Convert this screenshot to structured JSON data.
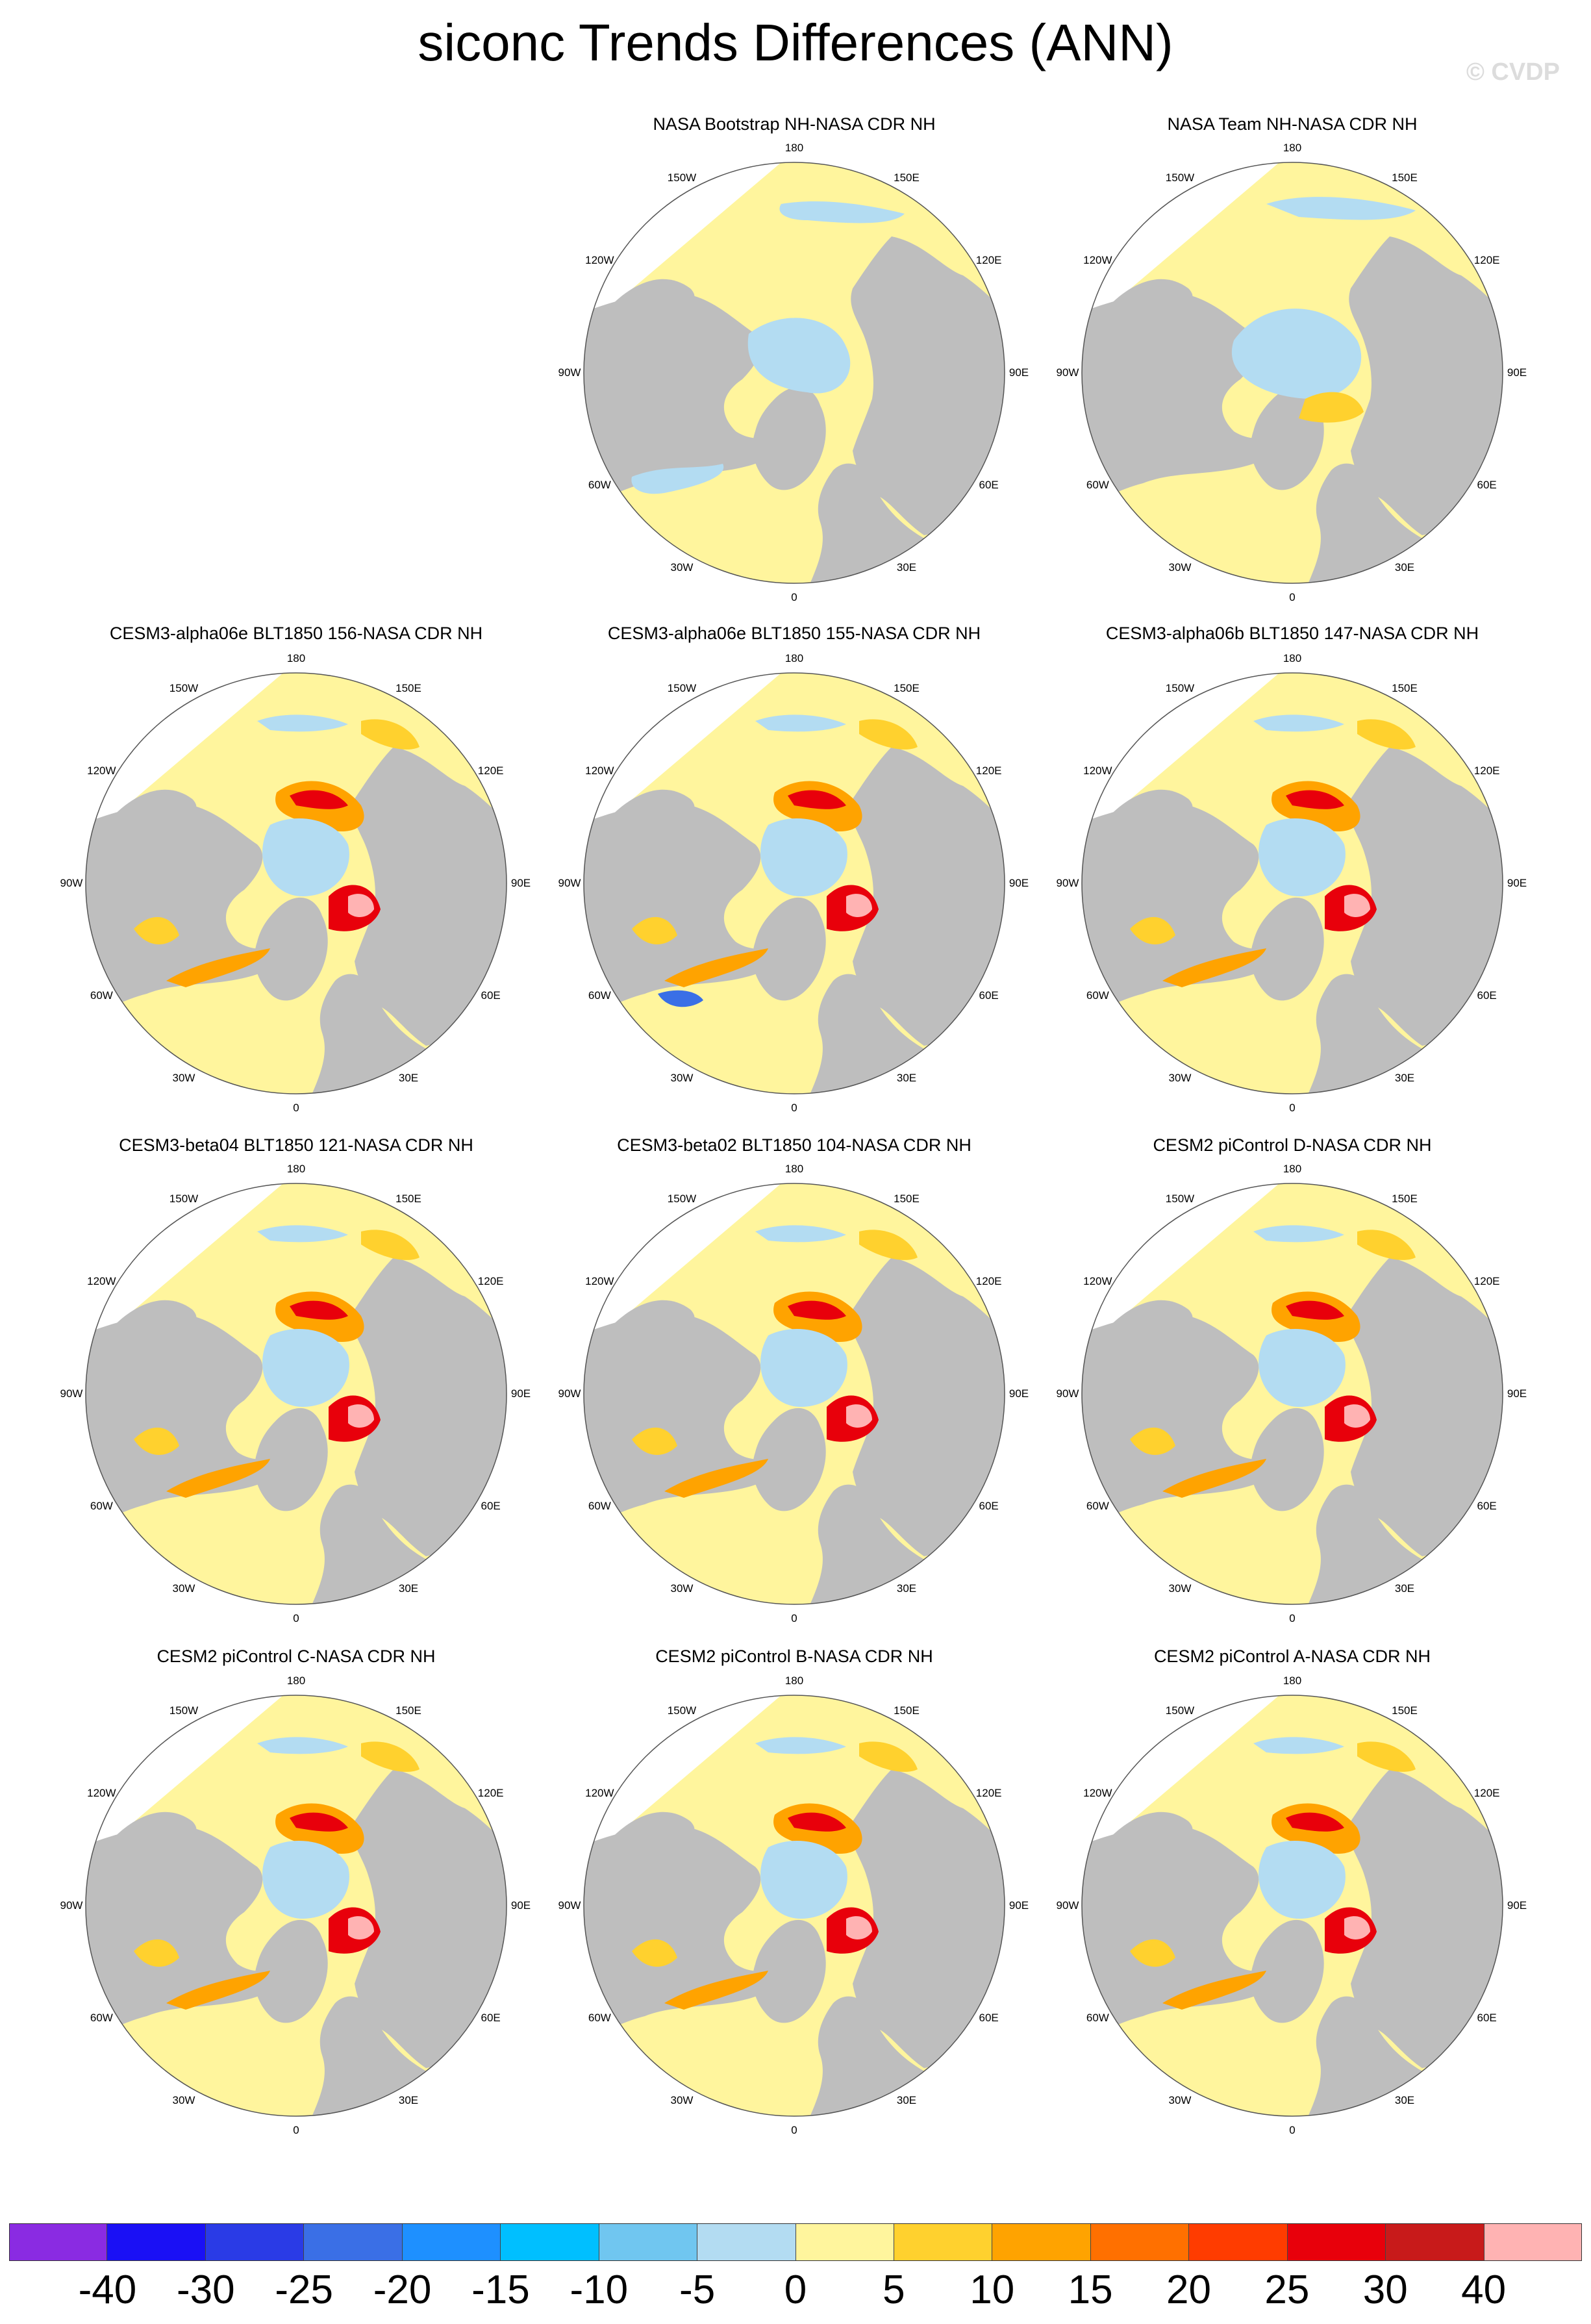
{
  "title": "siconc Trends Differences (ANN)",
  "watermark": "© CVDP",
  "colors": {
    "land": "#bebebe",
    "ocean_mask": "#ffffff",
    "zero": "#fff59d",
    "light_blue": "#b3dcf2",
    "yellow_orange": "#ffd12e",
    "orange": "#ffa300",
    "red": "#e8000b",
    "dark_red": "#c81010",
    "pink": "#ffb3b3"
  },
  "lon_labels": [
    {
      "text": "180",
      "pos": "top"
    },
    {
      "text": "150E",
      "pos": "top-right"
    },
    {
      "text": "120E",
      "pos": "right-upper"
    },
    {
      "text": "90E",
      "pos": "right"
    },
    {
      "text": "60E",
      "pos": "right-lower"
    },
    {
      "text": "30E",
      "pos": "bottom-right"
    },
    {
      "text": "0",
      "pos": "bottom"
    },
    {
      "text": "30W",
      "pos": "bottom-left"
    },
    {
      "text": "60W",
      "pos": "left-lower"
    },
    {
      "text": "90W",
      "pos": "left"
    },
    {
      "text": "120W",
      "pos": "left-upper"
    },
    {
      "text": "150W",
      "pos": "top-left"
    }
  ],
  "panels": [
    {
      "title": "NASA Bootstrap NH-NASA CDR NH",
      "variant": "obs1"
    },
    {
      "title": "NASA Team NH-NASA CDR NH",
      "variant": "obs2"
    },
    {
      "title": "CESM3-alpha06e BLT1850 156-NASA CDR NH",
      "variant": "model_a"
    },
    {
      "title": "CESM3-alpha06e BLT1850 155-NASA CDR NH",
      "variant": "model_b"
    },
    {
      "title": "CESM3-alpha06b BLT1850 147-NASA CDR NH",
      "variant": "model_c"
    },
    {
      "title": "CESM3-beta04 BLT1850 121-NASA CDR NH",
      "variant": "model_c"
    },
    {
      "title": "CESM3-beta02 BLT1850 104-NASA CDR NH",
      "variant": "model_c"
    },
    {
      "title": "CESM2 piControl D-NASA CDR NH",
      "variant": "model_d"
    },
    {
      "title": "CESM2 piControl C-NASA CDR NH",
      "variant": "model_d"
    },
    {
      "title": "CESM2 piControl B-NASA CDR NH",
      "variant": "model_d"
    },
    {
      "title": "CESM2 piControl A-NASA CDR NH",
      "variant": "model_d"
    }
  ],
  "colorbar": {
    "colors": [
      "#8a2be2",
      "#1a10f5",
      "#2a3be6",
      "#3a6fe6",
      "#1e90ff",
      "#00bfff",
      "#70c6f0",
      "#b3dcf2",
      "#fff59d",
      "#ffd12e",
      "#ffa300",
      "#ff7000",
      "#ff3c00",
      "#e8000b",
      "#c81a1a",
      "#ffb3b3"
    ],
    "tick_labels": [
      "-40",
      "-30",
      "-25",
      "-20",
      "-15",
      "-10",
      "-5",
      "0",
      "5",
      "10",
      "15",
      "20",
      "25",
      "30",
      "40"
    ]
  }
}
